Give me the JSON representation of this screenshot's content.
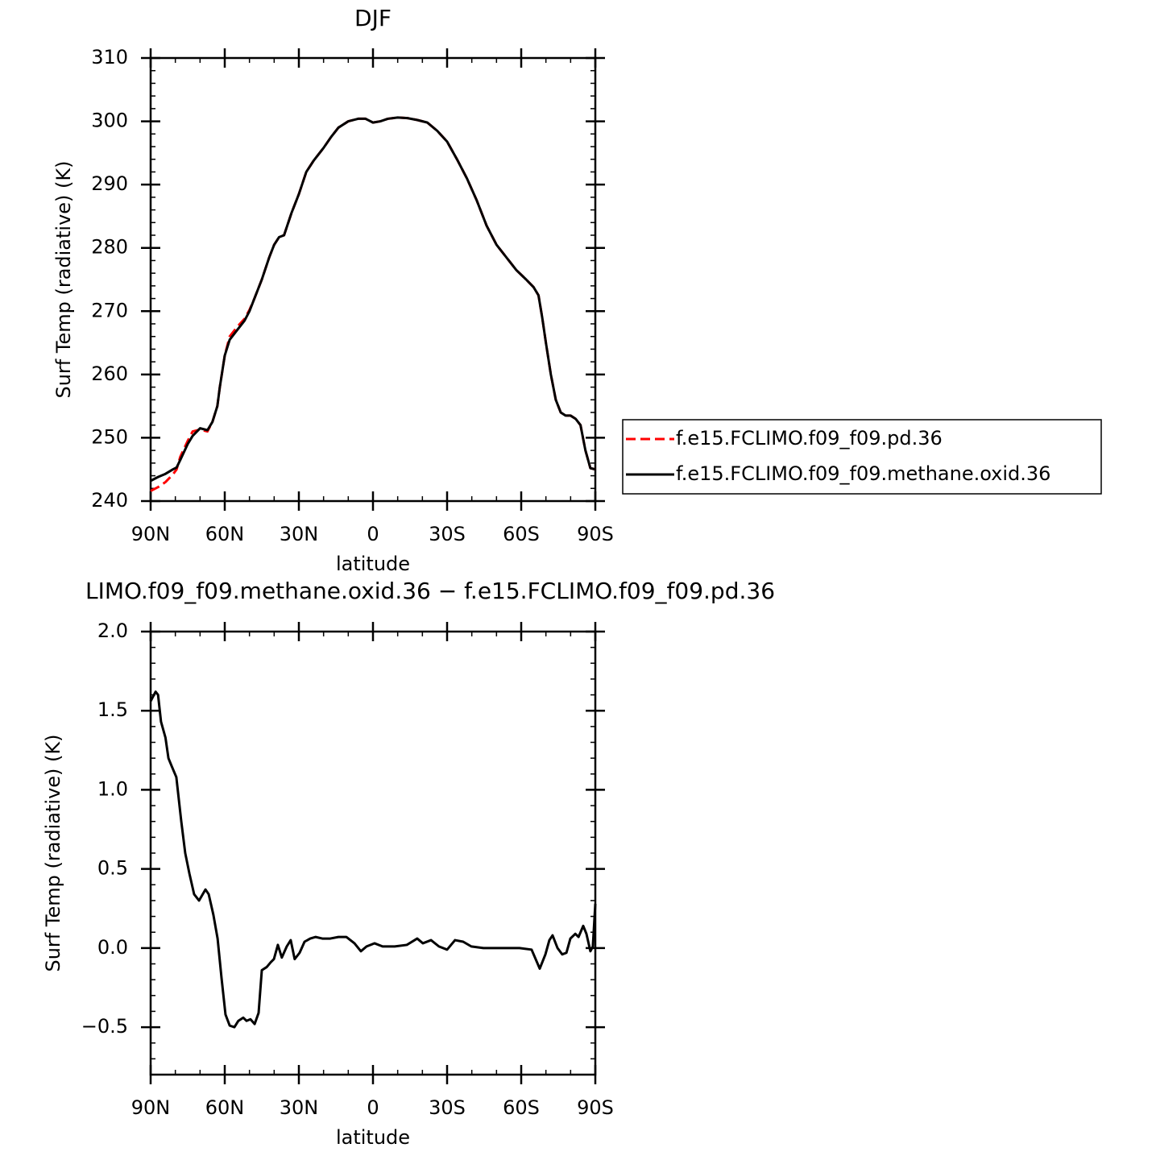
{
  "chart_data": [
    {
      "type": "line",
      "title": "DJF",
      "xlabel": "latitude",
      "ylabel": "Surf Temp (radiative) (K)",
      "x": [
        90,
        87,
        84,
        81,
        79.5,
        78,
        75,
        73,
        70,
        67,
        65,
        63,
        62,
        60,
        58,
        55,
        52,
        50,
        48,
        45,
        42,
        40,
        38,
        36,
        33,
        30,
        27,
        24,
        20,
        17,
        14,
        10,
        6,
        3,
        0,
        -3,
        -6,
        -10,
        -14,
        -18,
        -22,
        -26,
        -30,
        -34,
        -38,
        -42,
        -46,
        -50,
        -54,
        -58,
        -62,
        -65,
        -67,
        -68.5,
        -70,
        -72,
        -74,
        -76,
        -78,
        -80,
        -82,
        -84,
        -86,
        -88,
        -90
      ],
      "xlim": [
        90,
        -90
      ],
      "xticks": [
        {
          "value": 90,
          "label": "90N"
        },
        {
          "value": 60,
          "label": "60N"
        },
        {
          "value": 30,
          "label": "30N"
        },
        0,
        {
          "value": -30,
          "label": "30S"
        },
        {
          "value": -60,
          "label": "60S"
        },
        {
          "value": -90,
          "label": "90S"
        }
      ],
      "ylim": [
        240,
        310
      ],
      "yticks": [
        240,
        250,
        260,
        270,
        280,
        290,
        300,
        310
      ],
      "legend": "right",
      "series": [
        {
          "name": "f.e15.FCLIMO.f09_f09.pd.36",
          "color": "#ff0000",
          "dash": true,
          "values": [
            241.6,
            242.2,
            243.0,
            244.2,
            245.0,
            247.0,
            249.5,
            251.0,
            251.3,
            251.0,
            252.5,
            255.0,
            258.0,
            263.0,
            266.0,
            267.5,
            268.8,
            270.2,
            272.0,
            275.0,
            278.5,
            280.5,
            281.7,
            282.0,
            285.5,
            288.5,
            292.0,
            293.8,
            295.8,
            297.5,
            299.0,
            300.0,
            300.4,
            300.4,
            299.8,
            300.0,
            300.4,
            300.6,
            300.5,
            300.2,
            299.8,
            298.5,
            296.8,
            294.0,
            291.0,
            287.5,
            283.5,
            280.5,
            278.5,
            276.5,
            275.0,
            273.8,
            272.5,
            269.0,
            265.0,
            260.0,
            256.0,
            254.0,
            253.5,
            253.5,
            253.0,
            252.0,
            248.0,
            245.2,
            245.0
          ]
        },
        {
          "name": "f.e15.FCLIMO.f09_f09.methane.oxid.36",
          "color": "#000000",
          "dash": false,
          "values": [
            243.2,
            243.8,
            244.3,
            245.0,
            245.3,
            246.5,
            249.0,
            250.3,
            251.5,
            251.2,
            252.5,
            255.0,
            258.0,
            263.0,
            265.5,
            267.0,
            268.5,
            270.0,
            272.0,
            275.0,
            278.5,
            280.5,
            281.7,
            282.0,
            285.5,
            288.5,
            292.0,
            293.8,
            295.8,
            297.5,
            299.0,
            300.0,
            300.4,
            300.4,
            299.8,
            300.0,
            300.4,
            300.6,
            300.5,
            300.2,
            299.8,
            298.5,
            296.8,
            294.0,
            291.0,
            287.5,
            283.5,
            280.5,
            278.5,
            276.5,
            275.0,
            273.8,
            272.5,
            269.0,
            265.0,
            260.0,
            256.0,
            254.0,
            253.5,
            253.5,
            253.0,
            252.0,
            248.0,
            245.2,
            245.0
          ]
        }
      ]
    },
    {
      "type": "line",
      "title": "LIMO.f09_f09.methane.oxid.36 − f.e15.FCLIMO.f09_f09.pd.36",
      "xlabel": "latitude",
      "ylabel": "Surf Temp (radiative) (K)",
      "x": [
        90,
        88,
        87,
        85.8,
        84,
        82.8,
        81.5,
        79.6,
        77.6,
        76,
        74.3,
        72.4,
        70.4,
        67.8,
        66.5,
        64.6,
        62.9,
        61.3,
        59.7,
        58,
        56.1,
        54.5,
        52.5,
        51.2,
        49.6,
        47.9,
        46.3,
        45,
        43,
        41.4,
        40.1,
        38.5,
        36.9,
        34.9,
        33.3,
        31.7,
        29.7,
        27.7,
        25.4,
        23.2,
        20.5,
        17.3,
        14,
        10.8,
        7.5,
        4.9,
        2.6,
        -0.6,
        -3.9,
        -8.8,
        -13.7,
        -17.9,
        -20.2,
        -23.5,
        -26.7,
        -30,
        -33.2,
        -36.5,
        -39.8,
        -44.7,
        -51.2,
        -59.3,
        -64.2,
        -67.5,
        -69.8,
        -71.4,
        -72.7,
        -74.7,
        -76.6,
        -78.3,
        -79.9,
        -81.9,
        -83.2,
        -85.1,
        -86.4,
        -88,
        -89,
        -90
      ],
      "xlim": [
        90,
        -90
      ],
      "xticks": [
        {
          "value": 90,
          "label": "90N"
        },
        {
          "value": 60,
          "label": "60N"
        },
        {
          "value": 30,
          "label": "30N"
        },
        0,
        {
          "value": -30,
          "label": "30S"
        },
        {
          "value": -60,
          "label": "60S"
        },
        {
          "value": -90,
          "label": "90S"
        }
      ],
      "ylim": [
        -0.8,
        2.0
      ],
      "yticks": [
        {
          "value": -0.5,
          "label": "−0.5"
        },
        {
          "value": 0,
          "label": "0.0"
        },
        0.5,
        {
          "value": 1,
          "label": "1.0"
        },
        1.5,
        {
          "value": 2,
          "label": "2.0"
        }
      ],
      "series": [
        {
          "color": "#000000",
          "dash": false,
          "values": [
            1.56,
            1.62,
            1.6,
            1.43,
            1.33,
            1.2,
            1.15,
            1.08,
            0.8,
            0.6,
            0.47,
            0.34,
            0.3,
            0.37,
            0.34,
            0.21,
            0.06,
            -0.19,
            -0.42,
            -0.49,
            -0.5,
            -0.46,
            -0.44,
            -0.46,
            -0.45,
            -0.48,
            -0.41,
            -0.14,
            -0.12,
            -0.09,
            -0.07,
            0.02,
            -0.06,
            0.01,
            0.05,
            -0.07,
            -0.03,
            0.04,
            0.06,
            0.07,
            0.06,
            0.06,
            0.07,
            0.07,
            0.03,
            -0.02,
            0.01,
            0.03,
            0.01,
            0.01,
            0.02,
            0.06,
            0.03,
            0.05,
            0.01,
            -0.01,
            0.05,
            0.04,
            0.01,
            0.0,
            0.0,
            0.0,
            -0.01,
            -0.13,
            -0.04,
            0.05,
            0.08,
            0.0,
            -0.04,
            -0.03,
            0.06,
            0.09,
            0.07,
            0.14,
            0.09,
            -0.02,
            0.01,
            0.28
          ]
        }
      ]
    }
  ]
}
